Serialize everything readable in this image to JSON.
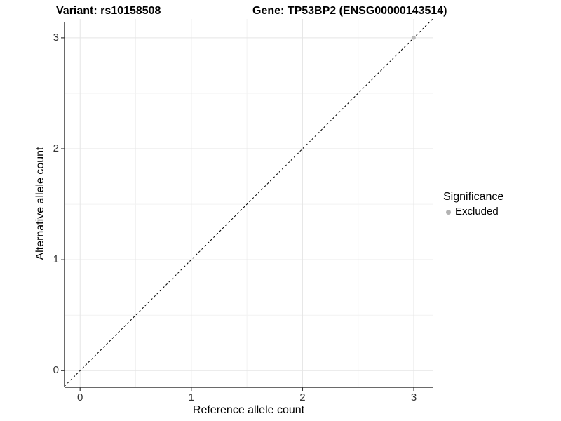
{
  "chart_data": {
    "type": "scatter",
    "title_left": "Variant: rs10158508",
    "title_right": "Gene: TP53BP2 (ENSG00000143514)",
    "xlabel": "Reference allele count",
    "ylabel": "Alternative allele count",
    "xlim": [
      -0.14,
      3.17
    ],
    "ylim": [
      -0.15,
      3.17
    ],
    "xticks": [
      0,
      1,
      2,
      3
    ],
    "yticks": [
      0,
      1,
      2,
      3
    ],
    "xminor": [
      0.5,
      1.5,
      2.5
    ],
    "yminor": [
      0.5,
      1.5,
      2.5
    ],
    "grid": true,
    "reference_line": {
      "kind": "identity",
      "slope": 1,
      "intercept": 0,
      "style": "dashed",
      "color": "#000000"
    },
    "series": [
      {
        "name": "Excluded",
        "color": "#b8b8b8",
        "points": [
          [
            3,
            3
          ]
        ]
      }
    ],
    "legend": {
      "title": "Significance",
      "position": "right",
      "entries": [
        {
          "label": "Excluded",
          "color": "#b3b3b3"
        }
      ]
    }
  },
  "style": {
    "background": "#ffffff",
    "grid_major": "#e5e5e5",
    "grid_minor": "#f2f2f2",
    "axis_line": "#383838",
    "tick_mark": "#383838",
    "tick_label_color": "#333333",
    "dash_pattern": "3 3"
  }
}
